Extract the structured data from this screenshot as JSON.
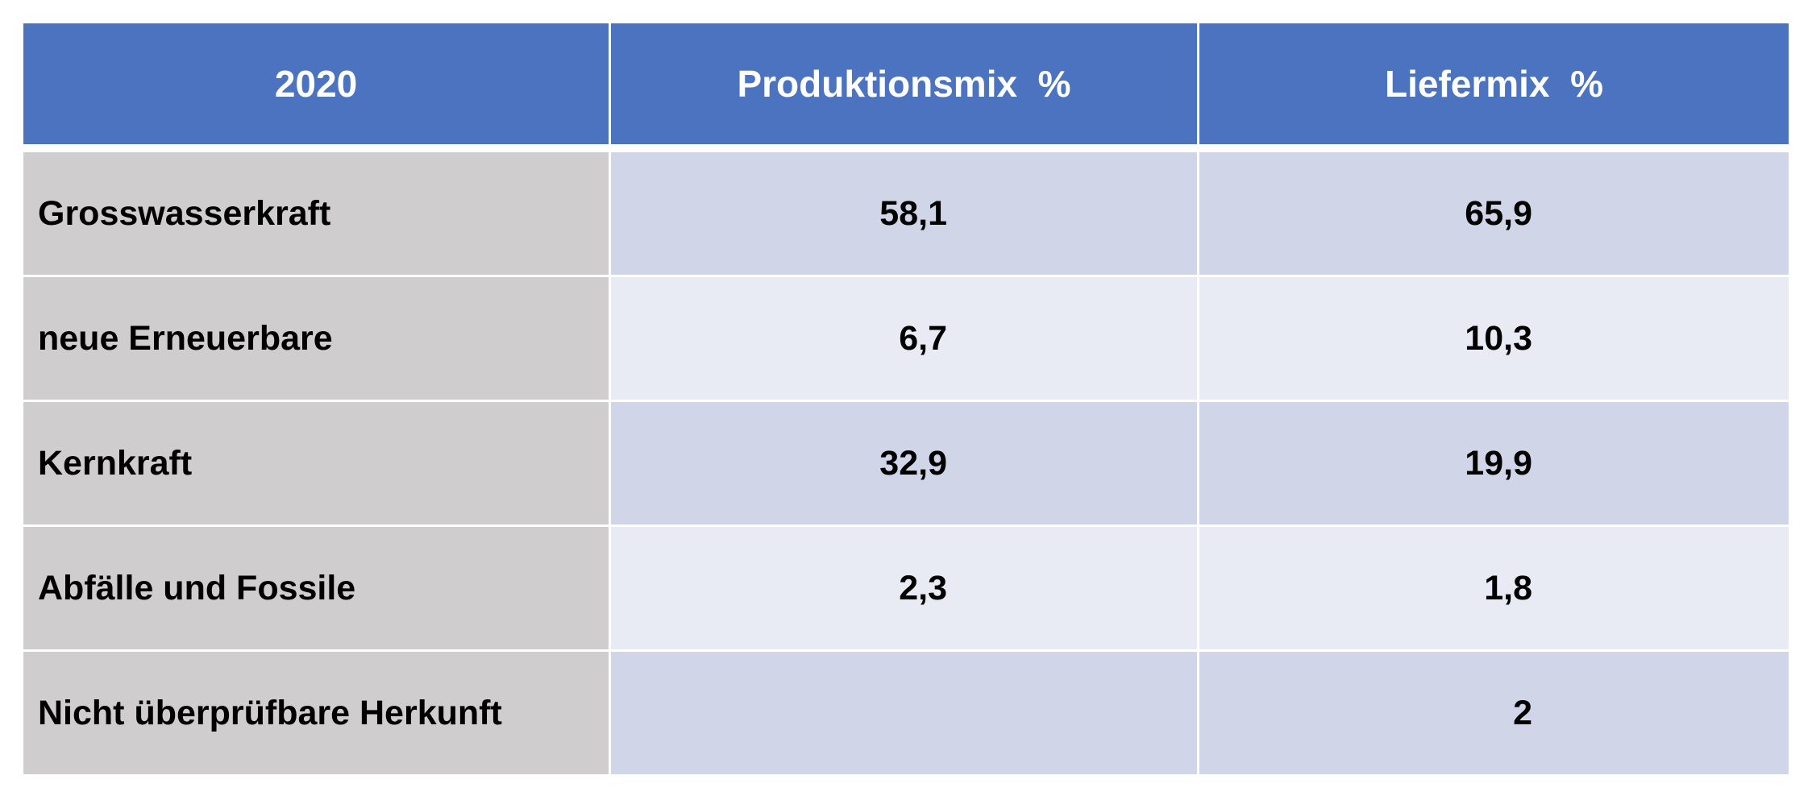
{
  "table": {
    "headers": [
      "2020",
      "Produktionsmix  %",
      "Liefermix  %"
    ],
    "rows": [
      {
        "label": "Grosswasserkraft",
        "produktionsmix": "58,1",
        "liefermix": "65,9"
      },
      {
        "label": "neue Erneuerbare",
        "produktionsmix": "6,7",
        "liefermix": "10,3"
      },
      {
        "label": "Kernkraft",
        "produktionsmix": "32,9",
        "liefermix": "19,9"
      },
      {
        "label": "Abfälle und Fossile",
        "produktionsmix": "2,3",
        "liefermix": "1,8"
      },
      {
        "label": "Nicht überprüfbare Herkunft",
        "produktionsmix": "",
        "liefermix": "2"
      }
    ]
  },
  "colors": {
    "header_bg": "#4c73c0",
    "label_bg": "#cfcdce",
    "band_dark": "#d0d5e8",
    "band_light": "#e8eaf4"
  }
}
